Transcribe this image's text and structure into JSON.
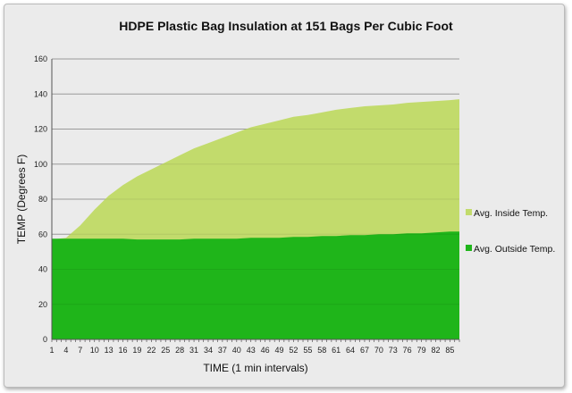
{
  "chart_data": {
    "type": "area",
    "title": "HDPE Plastic Bag Insulation at 151 Bags Per Cubic Foot",
    "xlabel": "TIME (1 min intervals)",
    "ylabel": "TEMP (Degrees F)",
    "ylim": [
      0,
      160
    ],
    "xlim": [
      1,
      87
    ],
    "yticks": [
      0,
      20,
      40,
      60,
      80,
      100,
      120,
      140,
      160
    ],
    "xticks": [
      "1",
      "4",
      "7",
      "10",
      "13",
      "16",
      "19",
      "22",
      "25",
      "28",
      "31",
      "34",
      "37",
      "40",
      "43",
      "46",
      "49",
      "52",
      "55",
      "58",
      "61",
      "64",
      "67",
      "70",
      "73",
      "76",
      "79",
      "82",
      "85"
    ],
    "grid": true,
    "legend_position": "right",
    "x": [
      1,
      4,
      7,
      10,
      13,
      16,
      19,
      22,
      25,
      28,
      31,
      34,
      37,
      40,
      43,
      46,
      49,
      52,
      55,
      58,
      61,
      64,
      67,
      70,
      73,
      76,
      79,
      82,
      85,
      87
    ],
    "series": [
      {
        "name": "Avg. Inside Temp.",
        "color": "#c2db6c",
        "values": [
          57,
          58,
          65,
          74,
          82,
          88,
          93,
          97,
          101,
          105,
          109,
          112,
          115,
          118,
          121,
          123,
          125,
          127,
          128,
          129.5,
          131,
          132,
          133,
          133.5,
          134,
          135,
          135.5,
          136,
          136.5,
          137
        ]
      },
      {
        "name": "Avg. Outside Temp.",
        "color": "#1fb51a",
        "values": [
          57.5,
          57.5,
          57.5,
          57.5,
          57.5,
          57.5,
          57,
          57,
          57,
          57,
          57.5,
          57.5,
          57.5,
          57.5,
          58,
          58,
          58,
          58.5,
          58.5,
          59,
          59,
          59.5,
          59.5,
          60,
          60,
          60.5,
          60.5,
          61,
          61.5,
          61.5
        ]
      }
    ]
  }
}
